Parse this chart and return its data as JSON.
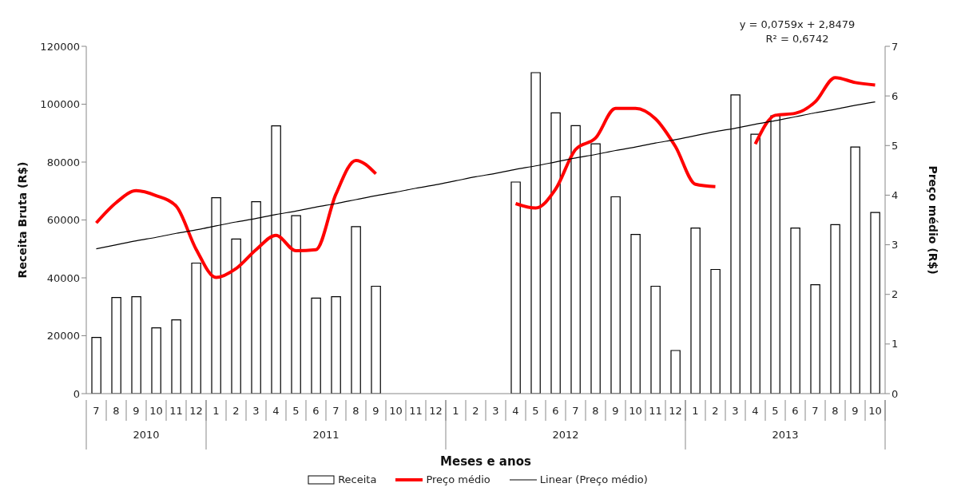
{
  "chart_data": {
    "type": "bar",
    "xlabel": "Meses e anos",
    "ylabel": "Receita Bruta (R$)",
    "y2label": "Preço médio (R$)",
    "categories": [
      "7",
      "8",
      "9",
      "10",
      "11",
      "12",
      "1",
      "2",
      "3",
      "4",
      "5",
      "6",
      "7",
      "8",
      "9",
      "10",
      "11",
      "12",
      "1",
      "2",
      "3",
      "4",
      "5",
      "6",
      "7",
      "8",
      "9",
      "10",
      "11",
      "12",
      "1",
      "2",
      "3",
      "4",
      "5",
      "6",
      "7",
      "8",
      "9",
      "10"
    ],
    "series": [
      {
        "name": "Receita",
        "color": "#ffffff",
        "values": [
          19400,
          33200,
          33500,
          22700,
          25500,
          45100,
          67700,
          53400,
          66300,
          92500,
          61500,
          33000,
          33500,
          57700,
          37100,
          null,
          null,
          null,
          null,
          null,
          null,
          73100,
          110900,
          97000,
          92600,
          86300,
          68000,
          55000,
          37100,
          14900,
          57200,
          42900,
          103200,
          89600,
          96000,
          57200,
          37600,
          58400,
          85200,
          62600
        ]
      },
      {
        "name": "Preço médio",
        "type": "line",
        "axis": "y2",
        "color": "#ff0000",
        "values": [
          3.44,
          3.85,
          4.09,
          3.99,
          3.78,
          2.91,
          2.34,
          2.52,
          2.9,
          3.19,
          2.88,
          2.9,
          4.02,
          4.7,
          4.43,
          null,
          null,
          null,
          null,
          null,
          null,
          3.83,
          3.74,
          4.12,
          4.92,
          5.15,
          5.75,
          5.75,
          5.54,
          4.98,
          4.22,
          4.17,
          null,
          5.03,
          5.61,
          5.65,
          5.88,
          6.37,
          6.27,
          6.22
        ]
      },
      {
        "name": "Linear (Preço médio)",
        "type": "line",
        "axis": "y2",
        "color": "#000000",
        "values": [
          2.92,
          3.0,
          3.08,
          3.15,
          3.23,
          3.3,
          3.38,
          3.46,
          3.53,
          3.61,
          3.68,
          3.76,
          3.83,
          3.91,
          3.99,
          4.06,
          4.14,
          4.21,
          4.29,
          4.37,
          4.44,
          4.52,
          4.59,
          4.67,
          4.75,
          4.82,
          4.9,
          4.97,
          5.05,
          5.12,
          5.2,
          5.28,
          5.35,
          5.43,
          5.5,
          5.58,
          5.66,
          5.73,
          5.81,
          5.88
        ]
      }
    ],
    "ylim": [
      0,
      120000
    ],
    "yticks": [
      0,
      20000,
      40000,
      60000,
      80000,
      100000,
      120000
    ],
    "y2lim": [
      0,
      7
    ],
    "y2ticks": [
      0,
      1,
      2,
      3,
      4,
      5,
      6,
      7
    ],
    "annotations": [
      "2010",
      "2011",
      "2012",
      "2013",
      "y = 0,0759x + 2,8479",
      "R² = 0,6742"
    ],
    "grid": false,
    "legend": "bottom",
    "marker": "none"
  }
}
